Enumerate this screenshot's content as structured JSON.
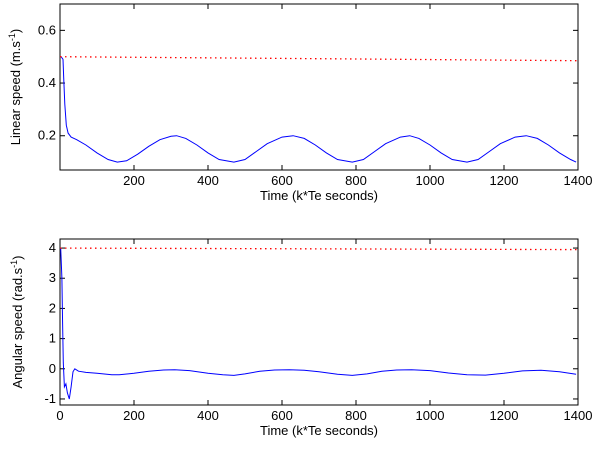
{
  "chart_data": [
    {
      "type": "line",
      "title": "",
      "xlabel": "Time (k*Te seconds)",
      "ylabel_main": "Linear speed (m.s",
      "ylabel_sup": "-1",
      "ylabel_tail": ")",
      "xlim": [
        0,
        1400
      ],
      "ylim": [
        0.07,
        0.7
      ],
      "xticks": [
        200,
        400,
        600,
        800,
        1000,
        1200,
        1400
      ],
      "xtick_labels": [
        "200",
        "400",
        "600",
        "800",
        "1000",
        "1200",
        "1400"
      ],
      "yticks": [
        0.2,
        0.4,
        0.6
      ],
      "ytick_labels": [
        "0.2",
        "0.4",
        "0.6"
      ],
      "series": [
        {
          "color": "#0000ff",
          "style": "solid",
          "x": [
            0,
            3,
            8,
            10,
            13,
            17,
            22,
            30,
            45,
            70,
            100,
            130,
            155,
            180,
            210,
            240,
            270,
            300,
            315,
            340,
            370,
            400,
            430,
            470,
            500,
            530,
            560,
            600,
            630,
            660,
            690,
            720,
            750,
            790,
            820,
            850,
            880,
            920,
            945,
            970,
            1000,
            1030,
            1060,
            1100,
            1130,
            1160,
            1190,
            1230,
            1260,
            1290,
            1320,
            1350,
            1380,
            1395
          ],
          "y": [
            0.5,
            0.5,
            0.49,
            0.42,
            0.32,
            0.24,
            0.21,
            0.195,
            0.185,
            0.165,
            0.135,
            0.11,
            0.1,
            0.105,
            0.13,
            0.16,
            0.185,
            0.198,
            0.2,
            0.19,
            0.165,
            0.135,
            0.11,
            0.1,
            0.11,
            0.14,
            0.17,
            0.195,
            0.2,
            0.19,
            0.165,
            0.135,
            0.11,
            0.1,
            0.11,
            0.14,
            0.17,
            0.195,
            0.2,
            0.19,
            0.165,
            0.135,
            0.11,
            0.1,
            0.11,
            0.14,
            0.17,
            0.195,
            0.2,
            0.19,
            0.165,
            0.135,
            0.11,
            0.1
          ]
        },
        {
          "color": "#ff0000",
          "style": "dotted",
          "x": [
            0,
            1400
          ],
          "y": [
            0.5,
            0.485
          ]
        }
      ]
    },
    {
      "type": "line",
      "title": "",
      "xlabel": "Time (k*Te seconds)",
      "ylabel_main": "Angular speed (rad.s",
      "ylabel_sup": "-1",
      "ylabel_tail": ")",
      "xlim": [
        0,
        1400
      ],
      "ylim": [
        -1.2,
        4.3
      ],
      "xticks": [
        0,
        200,
        400,
        600,
        800,
        1000,
        1200,
        1400
      ],
      "xtick_labels": [
        "0",
        "200",
        "400",
        "600",
        "800",
        "1000",
        "1200",
        "1400"
      ],
      "yticks": [
        -1,
        0,
        1,
        2,
        3,
        4
      ],
      "ytick_labels": [
        "-1",
        "0",
        "1",
        "2",
        "3",
        "4"
      ],
      "series": [
        {
          "color": "#0000ff",
          "style": "solid",
          "x": [
            0,
            2,
            5,
            7,
            9,
            12,
            16,
            20,
            25,
            30,
            35,
            40,
            50,
            70,
            100,
            140,
            160,
            200,
            240,
            280,
            310,
            350,
            400,
            440,
            470,
            500,
            540,
            580,
            620,
            660,
            700,
            750,
            790,
            830,
            870,
            910,
            950,
            1000,
            1050,
            1100,
            1150,
            1200,
            1250,
            1300,
            1350,
            1395
          ],
          "y": [
            4.0,
            4.0,
            3.0,
            1.5,
            0.2,
            -0.6,
            -0.5,
            -0.8,
            -1.0,
            -0.6,
            -0.1,
            0.0,
            -0.08,
            -0.12,
            -0.15,
            -0.2,
            -0.2,
            -0.15,
            -0.08,
            -0.04,
            -0.03,
            -0.06,
            -0.15,
            -0.2,
            -0.22,
            -0.17,
            -0.08,
            -0.04,
            -0.03,
            -0.05,
            -0.1,
            -0.18,
            -0.22,
            -0.17,
            -0.08,
            -0.04,
            -0.03,
            -0.06,
            -0.14,
            -0.2,
            -0.21,
            -0.15,
            -0.07,
            -0.05,
            -0.1,
            -0.18
          ]
        },
        {
          "color": "#ff0000",
          "style": "dotted",
          "x": [
            0,
            1400
          ],
          "y": [
            4.0,
            3.95
          ]
        }
      ]
    }
  ]
}
